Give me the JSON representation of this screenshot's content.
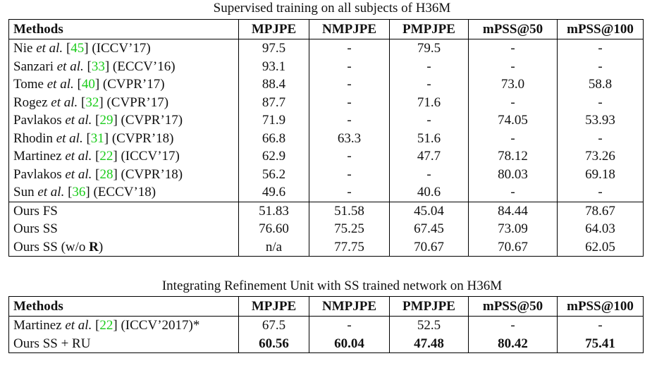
{
  "table1": {
    "caption": "Supervised training on all subjects of H36M",
    "headers": [
      "Methods",
      "MPJPE",
      "NMPJPE",
      "PMPJPE",
      "mPSS@50",
      "mPSS@100"
    ],
    "rows": [
      {
        "author": "Nie",
        "etal": "et al.",
        "ref": "45",
        "venue": "(ICCV’17)",
        "values": [
          "97.5",
          "-",
          "79.5",
          "-",
          "-"
        ]
      },
      {
        "author": "Sanzari",
        "etal": "et al.",
        "ref": "33",
        "venue": "(ECCV’16)",
        "values": [
          "93.1",
          "-",
          "-",
          "-",
          "-"
        ]
      },
      {
        "author": "Tome",
        "etal": "et al.",
        "ref": "40",
        "venue": "(CVPR’17)",
        "values": [
          "88.4",
          "-",
          "-",
          "73.0",
          "58.8"
        ]
      },
      {
        "author": "Rogez",
        "etal": "et al.",
        "ref": "32",
        "venue": "(CVPR’17)",
        "values": [
          "87.7",
          "-",
          "71.6",
          "-",
          "-"
        ]
      },
      {
        "author": "Pavlakos",
        "etal": "et al.",
        "ref": "29",
        "venue": "(CVPR’17)",
        "values": [
          "71.9",
          "-",
          "-",
          "74.05",
          "53.93"
        ]
      },
      {
        "author": "Rhodin",
        "etal": "et al.",
        "ref": "31",
        "venue": "(CVPR’18)",
        "values": [
          "66.8",
          "63.3",
          "51.6",
          "-",
          "-"
        ]
      },
      {
        "author": "Martinez",
        "etal": "et al.",
        "ref": "22",
        "venue": "(ICCV’17)",
        "values": [
          "62.9",
          "-",
          "47.7",
          "78.12",
          "73.26"
        ]
      },
      {
        "author": "Pavlakos",
        "etal": "et al.",
        "ref": "28",
        "venue": "(CVPR’18)",
        "values": [
          "56.2",
          "-",
          "-",
          "80.03",
          "69.18"
        ]
      },
      {
        "author": "Sun",
        "etal": "et al.",
        "ref": "36",
        "venue": "(ECCV’18)",
        "values": [
          "49.6",
          "-",
          "40.6",
          "-",
          "-"
        ]
      }
    ],
    "ours": [
      {
        "method": "Ours FS",
        "values": [
          "51.83",
          "51.58",
          "45.04",
          "84.44",
          "78.67"
        ]
      },
      {
        "method": "Ours SS",
        "values": [
          "76.60",
          "75.25",
          "67.45",
          "73.09",
          "64.03"
        ]
      },
      {
        "method_prefix": "Ours SS (w/o ",
        "method_bold": "R",
        "method_suffix": ")",
        "values": [
          "n/a",
          "77.75",
          "70.67",
          "70.67",
          "62.05"
        ]
      }
    ]
  },
  "table2": {
    "caption": "Integrating Refinement Unit with SS trained network on H36M",
    "headers": [
      "Methods",
      "MPJPE",
      "NMPJPE",
      "PMPJPE",
      "mPSS@50",
      "mPSS@100"
    ],
    "row1": {
      "author": "Martinez",
      "etal": "et al.",
      "ref": "22",
      "venue": "(ICCV’2017)*",
      "values": [
        "67.5",
        "-",
        "52.5",
        "-",
        "-"
      ]
    },
    "row2": {
      "method": "Ours SS + RU",
      "values": [
        "60.56",
        "60.04",
        "47.48",
        "80.42",
        "75.41"
      ]
    }
  }
}
